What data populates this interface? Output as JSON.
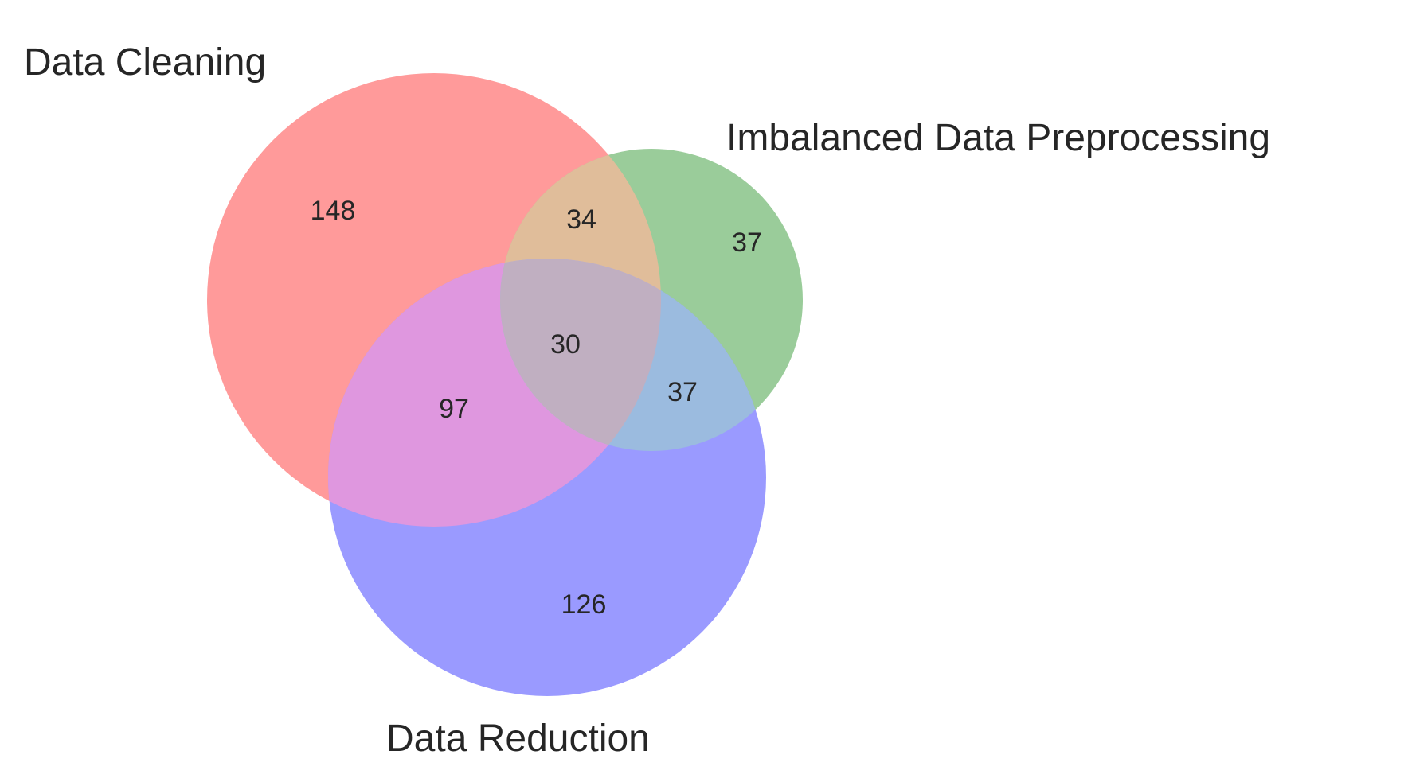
{
  "chart_data": {
    "type": "venn3",
    "sets": [
      {
        "name": "Data Cleaning",
        "color": "#ff0000"
      },
      {
        "name": "Imbalanced Data Preprocessing",
        "color": "#008000"
      },
      {
        "name": "Data Reduction",
        "color": "#0000ff"
      }
    ],
    "regions": {
      "cleaning_only": 148,
      "imbalanced_only": 37,
      "reduction_only": 126,
      "cleaning_imbalanced": 34,
      "cleaning_reduction": 97,
      "imbalanced_reduction": 37,
      "all_three": 30
    }
  }
}
